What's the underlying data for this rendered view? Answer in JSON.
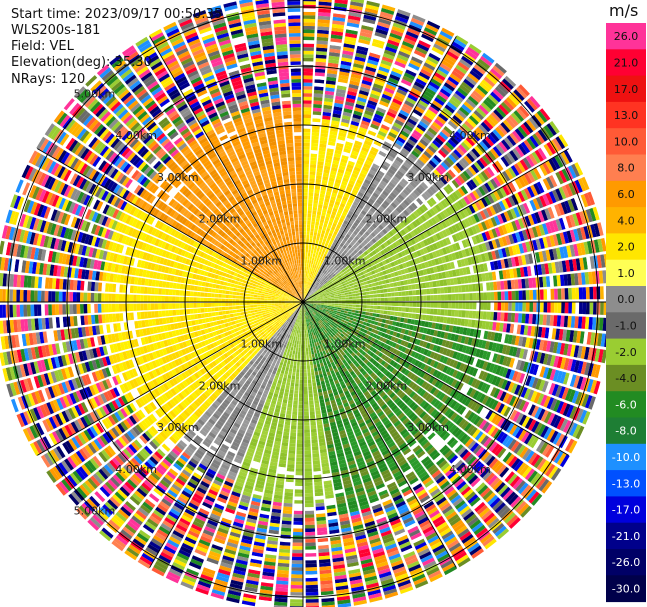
{
  "header": {
    "start_time": "Start time: 2023/09/17 00:50:35",
    "station": "WLS200s-181",
    "field": "Field: VEL",
    "elevation": "Elevation(deg): 35.30",
    "nrays": "NRays: 120"
  },
  "colorbar": {
    "unit": "m/s",
    "ticks": [
      "26.0",
      "21.0",
      "17.0",
      "13.0",
      "10.0",
      "8.0",
      "6.0",
      "4.0",
      "2.0",
      "1.0",
      "0.0",
      "-1.0",
      "-2.0",
      "-4.0",
      "-6.0",
      "-8.0",
      "-10.0",
      "-13.0",
      "-17.0",
      "-21.0",
      "-26.0",
      "-30.0"
    ],
    "colors": [
      "#ff3399",
      "#ff0033",
      "#ee1111",
      "#ff3322",
      "#ff5a36",
      "#ff7f50",
      "#ff9a00",
      "#ffb300",
      "#ffe600",
      "#ffff55",
      "#8d8d8d",
      "#6a6a6a",
      "#9acd32",
      "#6b8e23",
      "#228b22",
      "#1e7e34",
      "#1e90ff",
      "#0050ff",
      "#0000dd",
      "#00008b",
      "#000066",
      "#00004a",
      "#000033"
    ]
  },
  "chart_data": {
    "type": "ppi",
    "field": "VEL",
    "units": "m/s",
    "n_rays": 120,
    "elevation_deg": 35.3,
    "range_rings_km": [
      1,
      2,
      3,
      4,
      5
    ],
    "ring_labels": [
      {
        "text": "1.00km",
        "range_km": 1,
        "quadrant": "NW"
      },
      {
        "text": "1.00km",
        "range_km": 1,
        "quadrant": "NE"
      },
      {
        "text": "1.00km",
        "range_km": 1,
        "quadrant": "SW"
      },
      {
        "text": "1.00km",
        "range_km": 1,
        "quadrant": "SE"
      },
      {
        "text": "2.00km",
        "range_km": 2,
        "quadrant": "NW"
      },
      {
        "text": "2.00km",
        "range_km": 2,
        "quadrant": "NE"
      },
      {
        "text": "2.00km",
        "range_km": 2,
        "quadrant": "SW"
      },
      {
        "text": "2.00km",
        "range_km": 2,
        "quadrant": "SE"
      },
      {
        "text": "3.00km",
        "range_km": 3,
        "quadrant": "NW"
      },
      {
        "text": "3.00km",
        "range_km": 3,
        "quadrant": "NE"
      },
      {
        "text": "3.00km",
        "range_km": 3,
        "quadrant": "SW"
      },
      {
        "text": "3.00km",
        "range_km": 3,
        "quadrant": "SE"
      },
      {
        "text": "4.00km",
        "range_km": 4,
        "quadrant": "NW"
      },
      {
        "text": "4.00km",
        "range_km": 4,
        "quadrant": "NE"
      },
      {
        "text": "4.00km",
        "range_km": 4,
        "quadrant": "SW"
      },
      {
        "text": "4.00km",
        "range_km": 4,
        "quadrant": "SE"
      },
      {
        "text": "5.00km",
        "range_km": 5,
        "quadrant": "NW"
      },
      {
        "text": "5.00km",
        "range_km": 5,
        "quadrant": "SW"
      }
    ],
    "sectors": [
      {
        "from_deg": 300,
        "to_deg": 360,
        "max_km": 3.3,
        "value": 6.0
      },
      {
        "from_deg": 0,
        "to_deg": 28,
        "max_km": 3.1,
        "value": 2.0
      },
      {
        "from_deg": 28,
        "to_deg": 50,
        "max_km": 3.1,
        "value": 0.0
      },
      {
        "from_deg": 50,
        "to_deg": 100,
        "max_km": 3.2,
        "value": -2.0
      },
      {
        "from_deg": 100,
        "to_deg": 170,
        "max_km": 3.6,
        "value": -6.0
      },
      {
        "from_deg": 170,
        "to_deg": 200,
        "max_km": 3.4,
        "value": -2.0
      },
      {
        "from_deg": 200,
        "to_deg": 222,
        "max_km": 3.2,
        "value": 0.0
      },
      {
        "from_deg": 222,
        "to_deg": 300,
        "max_km": 3.4,
        "value": 2.0
      }
    ],
    "noise_beyond_km": 3.4,
    "max_range_km": 5.2
  }
}
